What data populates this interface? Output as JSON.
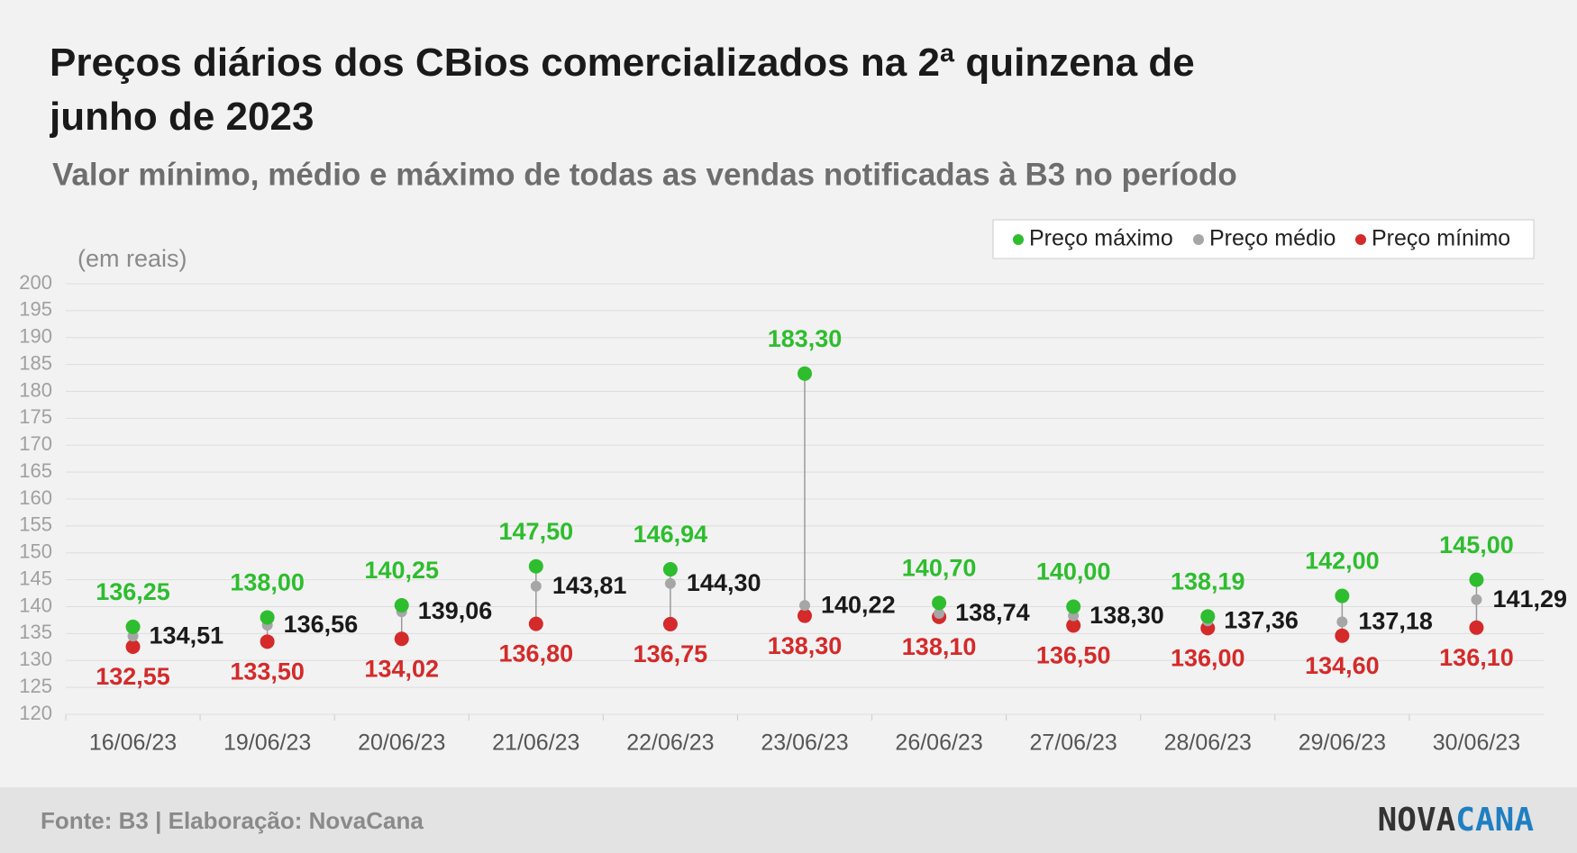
{
  "chart_data": {
    "type": "dumbbell",
    "title": "Preços diários dos CBios comercializados na 2ª quinzena de junho de 2023",
    "subtitle": "Valor mínimo, médio e máximo de todas as vendas notificadas à B3 no período",
    "y_label": "(em reais)",
    "categories": [
      "16/06/23",
      "19/06/23",
      "20/06/23",
      "21/06/23",
      "22/06/23",
      "23/06/23",
      "26/06/23",
      "27/06/23",
      "28/06/23",
      "29/06/23",
      "30/06/23"
    ],
    "series": [
      {
        "name": "Preço máximo",
        "color": "#2ebd2e",
        "values": [
          136.25,
          138.0,
          140.25,
          147.5,
          146.94,
          183.3,
          140.7,
          140.0,
          138.19,
          142.0,
          145.0
        ],
        "value_labels": [
          "136,25",
          "138,00",
          "140,25",
          "147,50",
          "146,94",
          "183,30",
          "140,70",
          "140,00",
          "138,19",
          "142,00",
          "145,00"
        ]
      },
      {
        "name": "Preço médio",
        "color": "#a6a6a6",
        "values": [
          134.51,
          136.56,
          139.06,
          143.81,
          144.3,
          140.22,
          138.74,
          138.3,
          137.36,
          137.18,
          141.29
        ],
        "value_labels": [
          "134,51",
          "136,56",
          "139,06",
          "143,81",
          "144,30",
          "140,22",
          "138,74",
          "138,30",
          "137,36",
          "137,18",
          "141,29"
        ]
      },
      {
        "name": "Preço mínimo",
        "color": "#d42a2a",
        "values": [
          132.55,
          133.5,
          134.02,
          136.8,
          136.75,
          138.3,
          138.1,
          136.5,
          136.0,
          134.6,
          136.1
        ],
        "value_labels": [
          "132,55",
          "133,50",
          "134,02",
          "136,80",
          "136,75",
          "138,30",
          "138,10",
          "136,50",
          "136,00",
          "134,60",
          "136,10"
        ]
      }
    ],
    "ylim": [
      120,
      200
    ],
    "yticks": [
      120,
      125,
      130,
      135,
      140,
      145,
      150,
      155,
      160,
      165,
      170,
      175,
      180,
      185,
      190,
      195,
      200
    ],
    "grid": true,
    "legend": "top-right"
  },
  "footer": {
    "source": "Fonte: B3 | Elaboração: NovaCana",
    "logo_left": "NOVA",
    "logo_right": "CANA"
  }
}
